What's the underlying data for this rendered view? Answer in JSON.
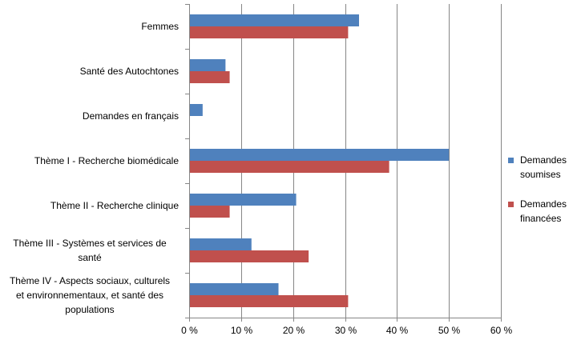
{
  "chart_data": {
    "type": "bar",
    "orientation": "horizontal",
    "categories": [
      [
        "Femmes"
      ],
      [
        "Santé des Autochtones"
      ],
      [
        "Demandes en français"
      ],
      [
        "Thème I - Recherche biomédicale"
      ],
      [
        "Thème II - Recherche clinique"
      ],
      [
        "Thème III - Systèmes et services de",
        "santé"
      ],
      [
        "Thème IV - Aspects sociaux, culturels",
        "et environnementaux, et santé des",
        "populations"
      ]
    ],
    "series": [
      {
        "name": [
          "Demandes",
          "soumises"
        ],
        "color": "#4f81bd",
        "values": [
          32.7,
          7.0,
          2.6,
          50.0,
          20.6,
          12.0,
          17.2
        ]
      },
      {
        "name": [
          "Demandes",
          "financées"
        ],
        "color": "#c0504d",
        "values": [
          30.6,
          7.8,
          0.0,
          38.5,
          7.8,
          23.0,
          30.6
        ]
      }
    ],
    "x_ticks": [
      "0 %",
      "10 %",
      "20 %",
      "30 %",
      "40 %",
      "50 %",
      "60 %"
    ],
    "xlim": [
      0,
      60
    ],
    "grid": true,
    "legend_position": "right"
  }
}
